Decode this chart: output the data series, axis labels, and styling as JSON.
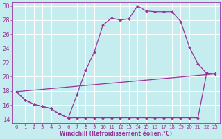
{
  "xlabel": "Windchill (Refroidissement éolien,°C)",
  "bg_color": "#c5edf0",
  "line_color": "#993399",
  "grid_color": "#ffffff",
  "xlim": [
    -0.5,
    23.5
  ],
  "ylim": [
    13.5,
    30.5
  ],
  "yticks": [
    14,
    16,
    18,
    20,
    22,
    24,
    26,
    28,
    30
  ],
  "xticks": [
    0,
    1,
    2,
    3,
    4,
    5,
    6,
    7,
    8,
    9,
    10,
    11,
    12,
    13,
    14,
    15,
    16,
    17,
    18,
    19,
    20,
    21,
    22,
    23
  ],
  "line1_x": [
    0,
    1,
    2,
    3,
    4,
    5,
    6,
    7,
    8,
    9,
    10,
    11,
    12,
    13,
    14,
    15,
    16,
    17,
    18,
    19,
    20,
    21,
    22,
    23
  ],
  "line1_y": [
    17.9,
    16.7,
    16.1,
    15.8,
    15.5,
    14.7,
    14.2,
    17.5,
    20.9,
    23.5,
    27.3,
    28.3,
    28.0,
    28.2,
    30.0,
    29.3,
    29.2,
    29.2,
    29.2,
    27.8,
    24.2,
    21.8,
    20.5,
    20.4
  ],
  "line2_x": [
    0,
    1,
    2,
    3,
    4,
    5,
    6,
    7,
    8,
    9,
    10,
    11,
    12,
    13,
    14,
    15,
    16,
    17,
    18,
    19,
    20,
    21,
    22,
    23
  ],
  "line2_y": [
    17.9,
    16.7,
    16.1,
    15.8,
    15.5,
    14.7,
    14.2,
    14.2,
    14.2,
    14.2,
    14.2,
    14.2,
    14.2,
    14.2,
    14.2,
    14.2,
    14.2,
    14.2,
    14.2,
    14.2,
    14.2,
    14.2,
    20.5,
    20.4
  ],
  "line3_x": [
    0,
    23
  ],
  "line3_y": [
    17.9,
    20.4
  ],
  "xlabel_fontsize": 5.5,
  "tick_fontsize": 5.0,
  "linewidth": 0.9,
  "markersize": 2.0
}
